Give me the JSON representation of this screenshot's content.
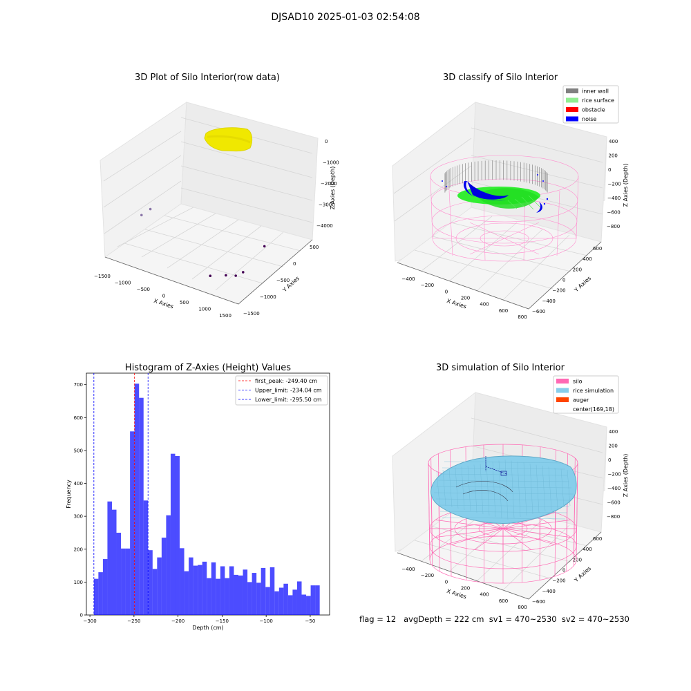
{
  "suptitle": "DJSAD10 2025-01-03 02:54:08",
  "status_line": "flag = 12   avgDepth = 222 cm  sv1 = 470~2530  sv2 = 470~2530",
  "chart_data": [
    {
      "type": "scatter",
      "projection": "3d",
      "title": "3D Plot of Silo Interior(row data)",
      "xlabel": "X Axies",
      "ylabel": "Y Axies",
      "zlabel": "Z Axies (Depth)",
      "x_ticks": [
        "−1500",
        "−1000",
        "−500",
        "0",
        "500",
        "1000",
        "1500"
      ],
      "y_ticks": [
        "−1500",
        "−1000",
        "−500",
        "0",
        "500"
      ],
      "z_ticks": [
        "−4000",
        "−3000",
        "−2000",
        "−1000",
        "0"
      ],
      "xlim": [
        -1600,
        1600
      ],
      "ylim": [
        -1600,
        700
      ],
      "zlim": [
        -4300,
        200
      ],
      "colors": {
        "surface": "#f0e800",
        "outlier": "#440154",
        "outlier_light": "#8a76a8"
      },
      "outliers": [
        {
          "x": -1300,
          "y": 500,
          "z": -4300
        },
        {
          "x": -1400,
          "y": 200,
          "z": -4300
        },
        {
          "x": 700,
          "y": -1000,
          "z": -4300
        },
        {
          "x": 1000,
          "y": -800,
          "z": -4300
        },
        {
          "x": 1200,
          "y": -700,
          "z": -4300
        },
        {
          "x": 1300,
          "y": -500,
          "z": -4300
        },
        {
          "x": 1400,
          "y": 600,
          "z": -4300
        }
      ]
    },
    {
      "type": "scatter",
      "projection": "3d",
      "title": "3D classify of Silo Interior",
      "xlabel": "X Axies",
      "ylabel": "Y Axies",
      "zlabel": "Z Axies (Depth)",
      "x_ticks": [
        "−400",
        "−200",
        "0",
        "200",
        "400",
        "600",
        "800"
      ],
      "y_ticks": [
        "−600",
        "−400",
        "−200",
        "0",
        "200",
        "400",
        "600"
      ],
      "z_ticks": [
        "−800",
        "−600",
        "−400",
        "−200",
        "0",
        "200",
        "400"
      ],
      "legend": [
        {
          "label": "inner wall",
          "color": "#808080"
        },
        {
          "label": "rice surface",
          "color": "#90ee90"
        },
        {
          "label": "obstacle",
          "color": "#ff0000"
        },
        {
          "label": "noise",
          "color": "#0000ff"
        }
      ],
      "legend_placement": "top-right"
    },
    {
      "type": "bar",
      "title": "Histogram of Z-Axies (Height) Values",
      "xlabel": "Depth (cm)",
      "ylabel": "Frequency",
      "xlim": [
        -304,
        -28
      ],
      "ylim": [
        0,
        735
      ],
      "x_ticks": [
        -300,
        -250,
        -200,
        -150,
        -100,
        -50
      ],
      "y_ticks": [
        0,
        100,
        200,
        300,
        400,
        500,
        600,
        700
      ],
      "bin_start": -295.5,
      "bin_width": 5.125,
      "values": [
        110,
        130,
        170,
        345,
        320,
        250,
        202,
        202,
        558,
        703,
        660,
        348,
        197,
        140,
        175,
        235,
        303,
        490,
        483,
        203,
        133,
        175,
        150,
        152,
        162,
        112,
        160,
        110,
        148,
        112,
        148,
        122,
        120,
        138,
        100,
        128,
        98,
        143,
        85,
        145,
        72,
        83,
        95,
        60,
        77,
        102,
        62,
        58,
        90,
        90
      ],
      "bar_color": "#0000ff",
      "bar_opacity": 0.7,
      "vlines": [
        {
          "label": "first_peak: -249.40 cm",
          "x": -249.4,
          "color": "#ff0000"
        },
        {
          "label": "Upper_limit: -234.04 cm",
          "x": -234.04,
          "color": "#0000ff"
        },
        {
          "label": "Lower_limit: -295.50 cm",
          "x": -295.5,
          "color": "#0000ff"
        }
      ],
      "legend_placement": "top-right"
    },
    {
      "type": "surface",
      "projection": "3d",
      "title": "3D simulation of Silo Interior",
      "xlabel": "X Axies",
      "ylabel": "Y Axies",
      "zlabel": "Z Axies (Depth)",
      "x_ticks": [
        "−400",
        "−200",
        "0",
        "200",
        "400",
        "600",
        "800"
      ],
      "y_ticks": [
        "−600",
        "−400",
        "−200",
        "0",
        "200",
        "400",
        "600"
      ],
      "z_ticks": [
        "−800",
        "−600",
        "−400",
        "−200",
        "0",
        "200",
        "400"
      ],
      "legend": [
        {
          "label": "silo",
          "color": "#ff69b4"
        },
        {
          "label": "rice simulation",
          "color": "#87ceeb"
        },
        {
          "label": "auger",
          "color": "#ff4500"
        },
        {
          "label": "center(169,18)",
          "color": "none"
        }
      ],
      "legend_placement": "top-right"
    }
  ]
}
